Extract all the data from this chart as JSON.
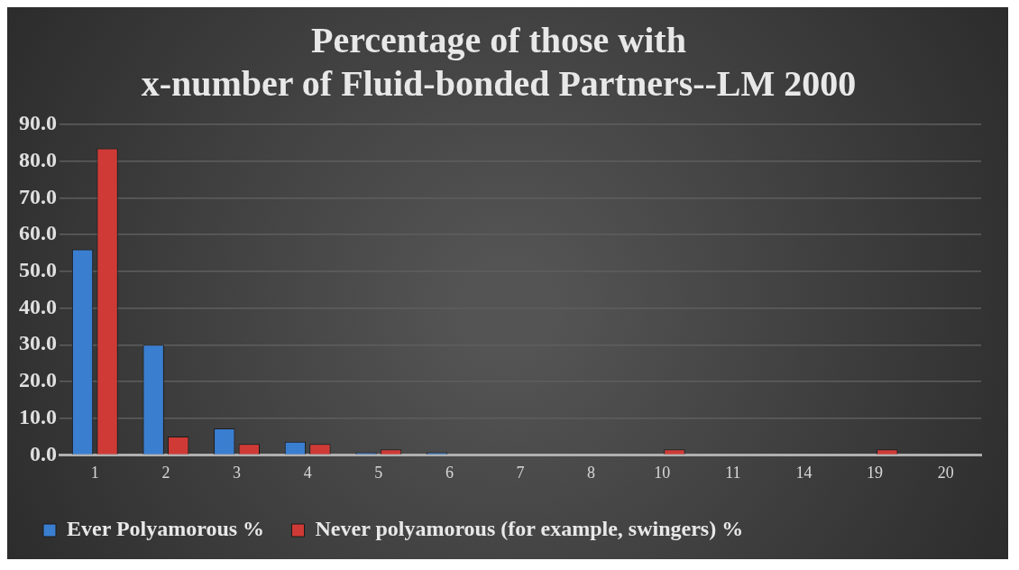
{
  "chart_data": {
    "type": "bar",
    "title": "Percentage of those with x-number of Fluid-bonded Partners--LM 2000",
    "categories": [
      "1",
      "2",
      "3",
      "4",
      "5",
      "6",
      "7",
      "8",
      "10",
      "11",
      "14",
      "19",
      "20"
    ],
    "series": [
      {
        "name": "Ever Polyamorous %",
        "color": "#3a7ed0",
        "values": [
          56,
          30,
          7.2,
          3.6,
          0.7,
          0.7,
          0,
          0,
          0,
          0,
          0,
          0,
          0
        ]
      },
      {
        "name": "Never polyamorous (for example, swingers) %",
        "color": "#cf3a36",
        "values": [
          83.5,
          5,
          3,
          3,
          1.5,
          0,
          0,
          0,
          1.5,
          0,
          0,
          1.5,
          0
        ]
      }
    ],
    "ylim": [
      0,
      90
    ],
    "yticks": [
      {
        "value": 0,
        "label": "0.0"
      },
      {
        "value": 10,
        "label": "10.0"
      },
      {
        "value": 20,
        "label": "20.0"
      },
      {
        "value": 30,
        "label": "30.0"
      },
      {
        "value": 40,
        "label": "40.0"
      },
      {
        "value": 50,
        "label": "50.0"
      },
      {
        "value": 60,
        "label": "60.0"
      },
      {
        "value": 70,
        "label": "70.0"
      },
      {
        "value": 80,
        "label": "80.0"
      },
      {
        "value": 90,
        "label": "90.0"
      }
    ],
    "grid": "y",
    "legend": "bottom"
  }
}
